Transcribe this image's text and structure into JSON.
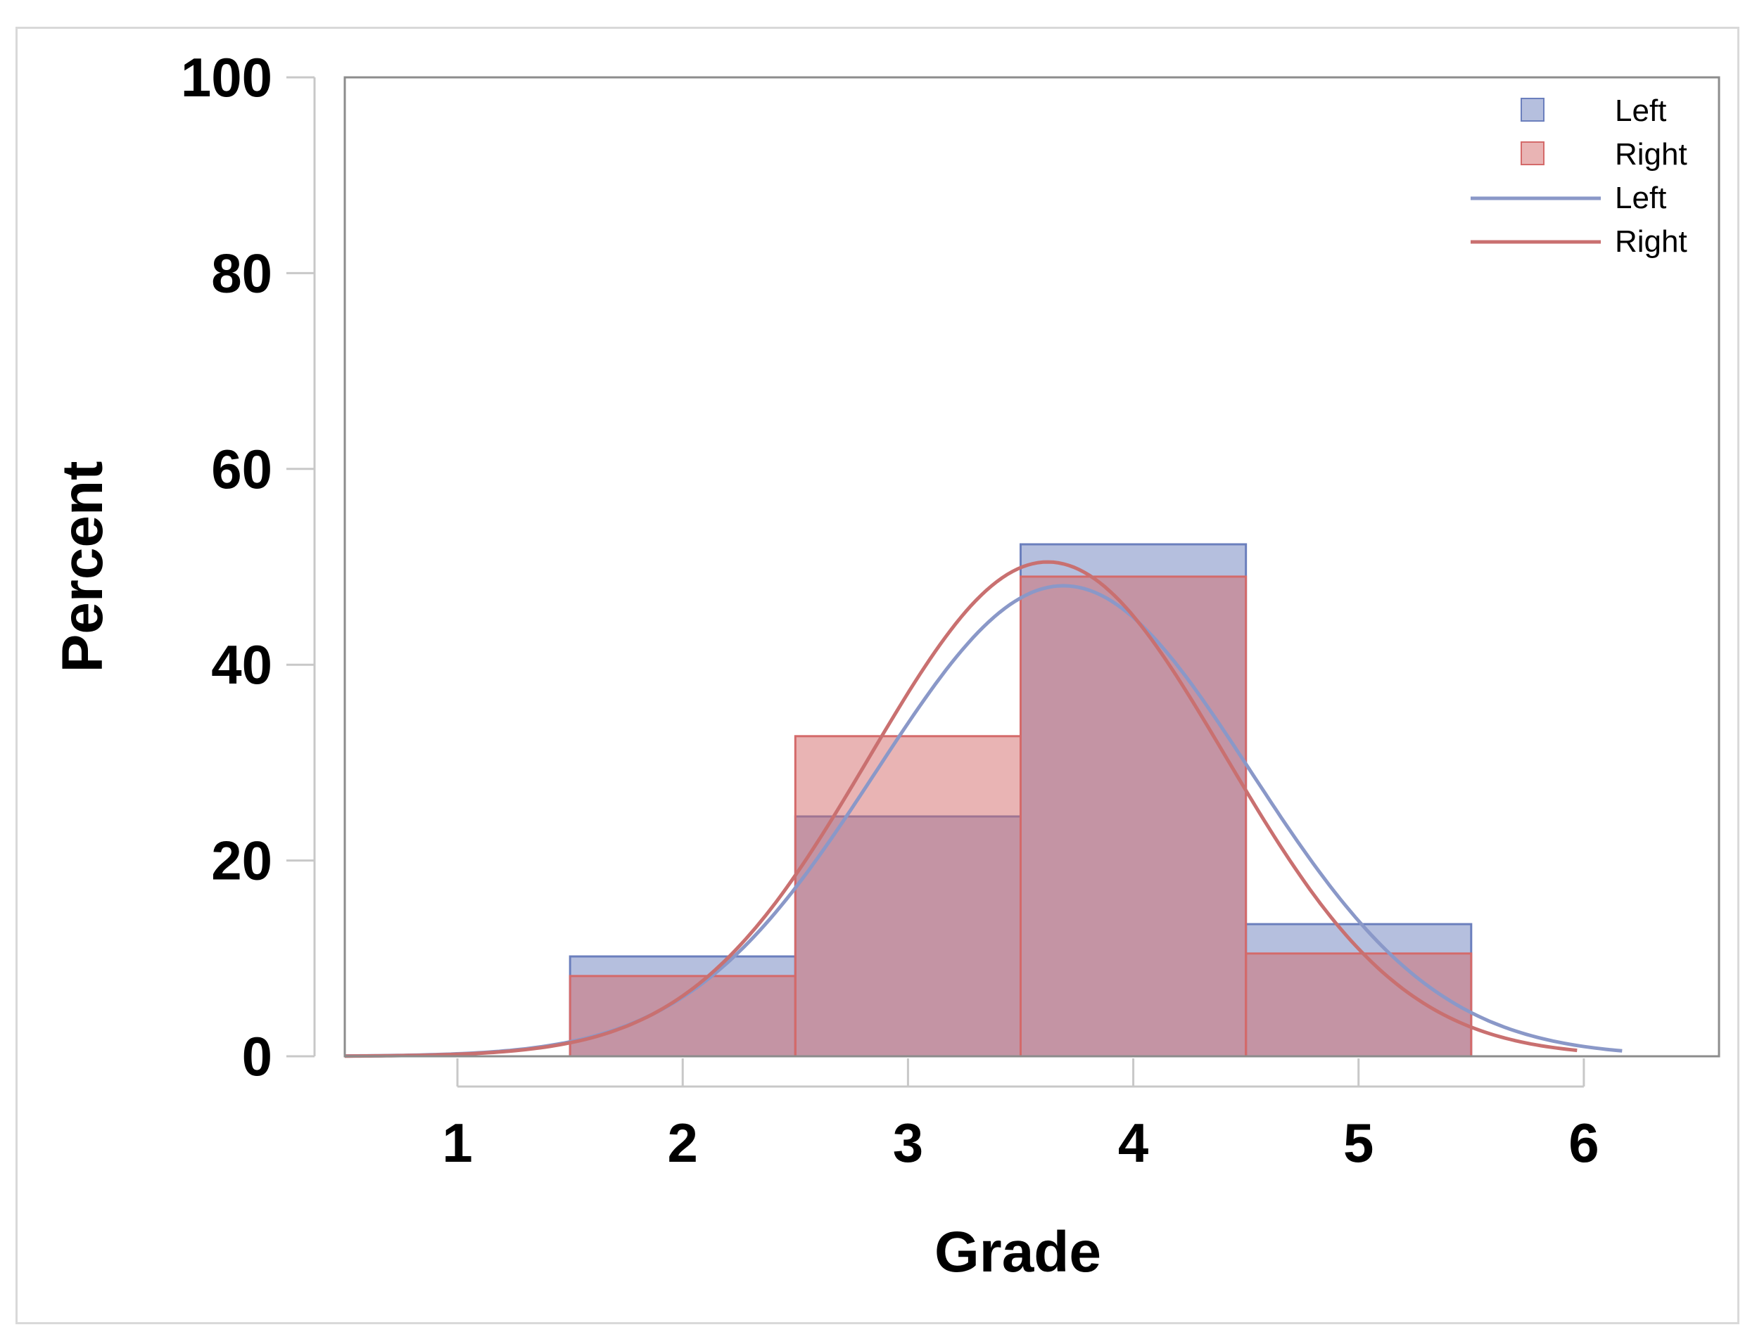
{
  "chart_data": {
    "type": "bar",
    "title": "",
    "xlabel": "Grade",
    "ylabel": "Percent",
    "xlim": [
      0.5,
      6.6
    ],
    "ylim": [
      0,
      100
    ],
    "x_ticks": [
      1,
      2,
      3,
      4,
      5,
      6
    ],
    "y_ticks": [
      0,
      20,
      40,
      60,
      80,
      100
    ],
    "bin_width": 1,
    "legend_position": "top-right",
    "grid": false,
    "series": [
      {
        "name": "Left",
        "kind": "histogram",
        "color": "#6b7fbd",
        "bins": [
          2,
          3,
          4,
          5
        ],
        "values": [
          10.2,
          24.5,
          52.3,
          13.5
        ]
      },
      {
        "name": "Right",
        "kind": "histogram",
        "color": "#d46a6a",
        "bins": [
          2,
          3,
          4,
          5
        ],
        "values": [
          8.2,
          32.7,
          49.0,
          10.5
        ]
      },
      {
        "name": "Left",
        "kind": "normal-curve",
        "color": "#8a98c8",
        "mean": 3.69,
        "sd": 0.83,
        "x_range": [
          0.5,
          6.17
        ]
      },
      {
        "name": "Right",
        "kind": "normal-curve",
        "color": "#c97070",
        "mean": 3.62,
        "sd": 0.79,
        "x_range": [
          0.5,
          5.97
        ]
      }
    ]
  }
}
